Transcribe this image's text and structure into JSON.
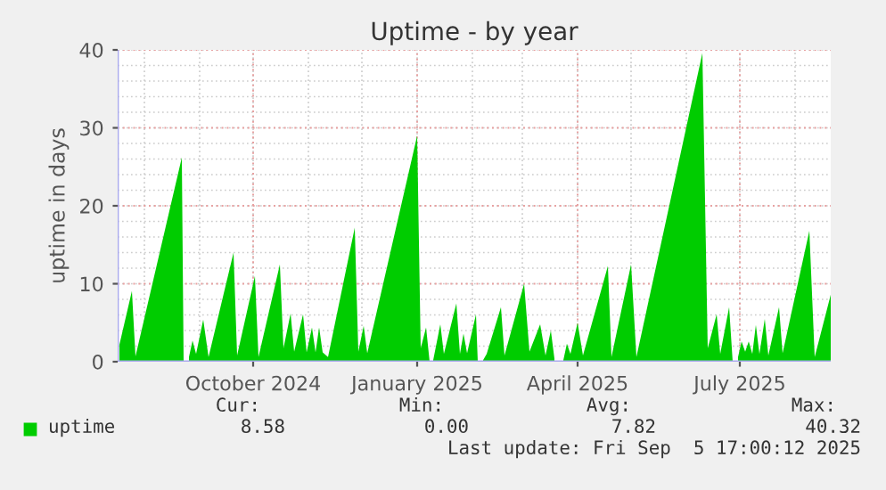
{
  "chart_data": {
    "type": "area",
    "title": "Uptime - by year",
    "ylabel": "uptime in days",
    "x": [
      "2024-07-18",
      "2024-07-25",
      "2024-07-27",
      "2024-08-22",
      "2024-08-23",
      "2024-08-24",
      "2024-08-26",
      "2024-08-28",
      "2024-08-30",
      "2024-09-03",
      "2024-09-06",
      "2024-09-20",
      "2024-09-22",
      "2024-10-02",
      "2024-10-04",
      "2024-10-16",
      "2024-10-18",
      "2024-10-22",
      "2024-10-24",
      "2024-10-29",
      "2024-10-31",
      "2024-11-03",
      "2024-11-05",
      "2024-11-07",
      "2024-11-09",
      "2024-11-12",
      "2024-11-27",
      "2024-11-29",
      "2024-12-02",
      "2024-12-04",
      "2025-01-01",
      "2025-01-03",
      "2025-01-06",
      "2025-01-08",
      "2025-01-09",
      "2025-01-10",
      "2025-01-14",
      "2025-01-16",
      "2025-01-23",
      "2025-01-25",
      "2025-01-27",
      "2025-01-29",
      "2025-02-03",
      "2025-02-04",
      "2025-02-05",
      "2025-02-07",
      "2025-02-09",
      "2025-02-17",
      "2025-02-19",
      "2025-03-02",
      "2025-03-05",
      "2025-03-11",
      "2025-03-14",
      "2025-03-17",
      "2025-03-19",
      "2025-03-22",
      "2025-03-24",
      "2025-03-26",
      "2025-03-28",
      "2025-04-01",
      "2025-04-04",
      "2025-04-18",
      "2025-04-20",
      "2025-05-01",
      "2025-05-04",
      "2025-06-10",
      "2025-06-13",
      "2025-06-18",
      "2025-06-20",
      "2025-06-25",
      "2025-06-27",
      "2025-06-28",
      "2025-06-30",
      "2025-07-02",
      "2025-07-04",
      "2025-07-06",
      "2025-07-08",
      "2025-07-10",
      "2025-07-12",
      "2025-07-15",
      "2025-07-17",
      "2025-07-23",
      "2025-07-25",
      "2025-08-09",
      "2025-08-12",
      "2025-08-21"
    ],
    "series": [
      {
        "name": "uptime",
        "color": "#00cc00",
        "values": [
          2.2,
          9.1,
          0.7,
          26.2,
          0,
          null,
          0.6,
          2.7,
          1.0,
          5.4,
          0.6,
          14.0,
          0.8,
          11.0,
          0.6,
          12.5,
          1.7,
          6.2,
          1.3,
          6.1,
          1.2,
          4.4,
          1.2,
          4.4,
          1.2,
          0.6,
          17.2,
          1.3,
          4.6,
          1.1,
          29.0,
          1.7,
          4.4,
          0,
          null,
          0.2,
          4.8,
          1.0,
          7.5,
          1.0,
          3.6,
          1.1,
          6.1,
          0,
          null,
          0.2,
          1.0,
          7.0,
          0.8,
          10.0,
          1.3,
          4.8,
          0.8,
          4.0,
          0.4,
          null,
          0.2,
          2.3,
          1.0,
          5.0,
          0.8,
          12.3,
          0.6,
          12.5,
          0.6,
          39.6,
          1.7,
          6.1,
          1.0,
          7.0,
          0,
          null,
          0.6,
          2.6,
          1.3,
          2.6,
          1.0,
          4.7,
          1.0,
          5.5,
          0.8,
          7.0,
          1.1,
          16.8,
          0.6,
          8.6
        ]
      }
    ],
    "xlim": [
      "2024-07-17",
      "2025-08-21"
    ],
    "xticks": [
      {
        "value": "2024-10-01",
        "label": "October 2024"
      },
      {
        "value": "2025-01-01",
        "label": "January 2025"
      },
      {
        "value": "2025-04-01",
        "label": "April 2025"
      },
      {
        "value": "2025-07-01",
        "label": "July 2025"
      }
    ],
    "ylim": [
      0,
      40
    ],
    "yticks": [
      0,
      10,
      20,
      30,
      40
    ],
    "grid": true,
    "legend": "bottom left",
    "annotations": [
      "Cur:",
      "8.58",
      "Min:",
      "0.00",
      "Avg:",
      "7.82",
      "Max:",
      "40.32",
      "Last update: Fri Sep  5 17:00:12 2025"
    ]
  }
}
